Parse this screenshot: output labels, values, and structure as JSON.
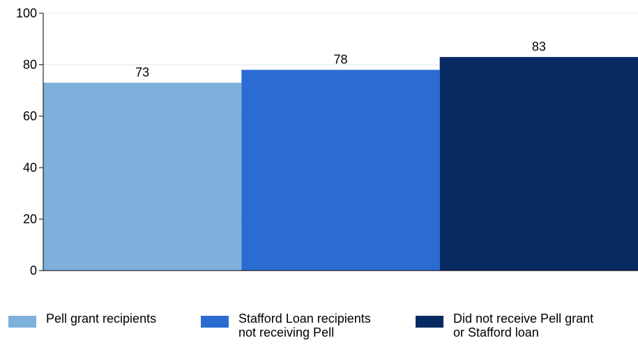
{
  "chart_data": {
    "type": "bar",
    "categories": [
      "Pell grant recipients",
      "Stafford Loan recipients\nnot receiving Pell",
      "Did not receive Pell grant\nor Stafford loan"
    ],
    "values": [
      73,
      78,
      83
    ],
    "data_labels": [
      "73",
      "78",
      "83"
    ],
    "colors": [
      "#7eb0dc",
      "#2b6cd3",
      "#082a63"
    ],
    "ylim": [
      0,
      100
    ],
    "yticks": [
      0,
      20,
      40,
      60,
      80,
      100
    ],
    "grid": true,
    "legend_position": "bottom",
    "title": "",
    "xlabel": "",
    "ylabel": ""
  }
}
